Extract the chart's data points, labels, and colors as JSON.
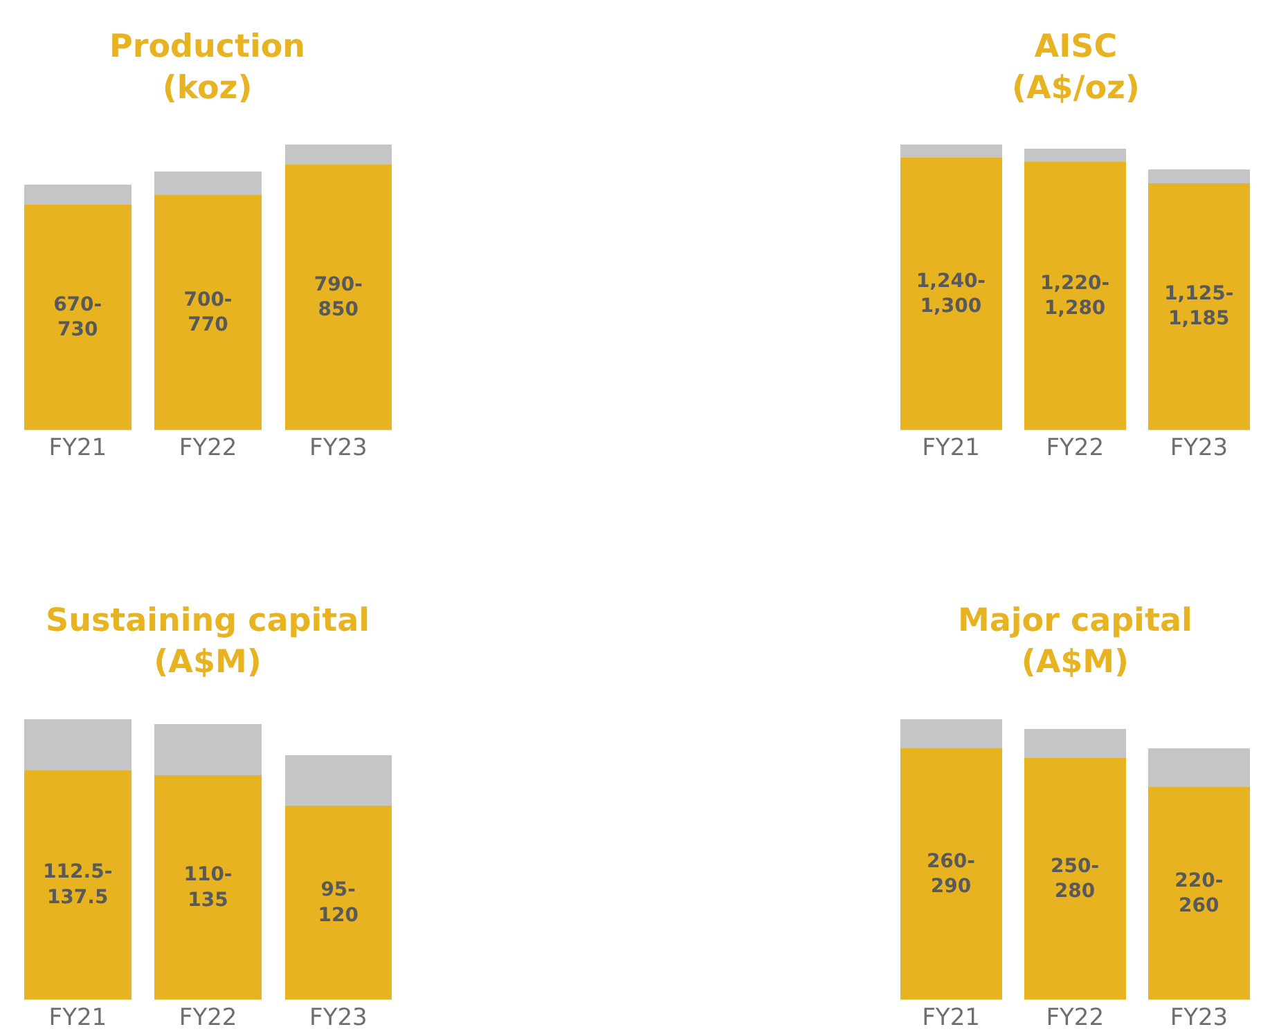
{
  "chart_data": [
    {
      "type": "bar",
      "stacked": true,
      "title": "Production\n(koz)",
      "categories": [
        "FY21",
        "FY22",
        "FY23"
      ],
      "tick_labels": "x",
      "series": [
        {
          "color": "#e8b321",
          "values": [
            670,
            700,
            790
          ],
          "value_labels": [
            "670-\n730",
            "700-\n770",
            "790-\n850"
          ]
        },
        {
          "color": "#c4c5c7",
          "values": [
            60,
            70,
            60
          ]
        }
      ]
    },
    {
      "type": "bar",
      "stacked": true,
      "title": "AISC\n(A$/oz)",
      "categories": [
        "FY21",
        "FY22",
        "FY23"
      ],
      "tick_labels": "x",
      "series": [
        {
          "color": "#e8b321",
          "values": [
            1240,
            1220,
            1125
          ],
          "value_labels": [
            "1,240-\n1,300",
            "1,220-\n1,280",
            "1,125-\n1,185"
          ]
        },
        {
          "color": "#c4c5c7",
          "values": [
            60,
            60,
            60
          ]
        }
      ]
    },
    {
      "type": "bar",
      "stacked": true,
      "title": "Sustaining capital\n(A$M)",
      "categories": [
        "FY21",
        "FY22",
        "FY23"
      ],
      "tick_labels": "x",
      "series": [
        {
          "color": "#e8b321",
          "values": [
            112.5,
            110,
            95
          ],
          "value_labels": [
            "112.5-\n137.5",
            "110-\n135",
            "95-\n120"
          ]
        },
        {
          "color": "#c4c5c7",
          "values": [
            25,
            25,
            25
          ]
        }
      ]
    },
    {
      "type": "bar",
      "stacked": true,
      "title": "Major capital\n(A$M)",
      "categories": [
        "FY21",
        "FY22",
        "FY23"
      ],
      "tick_labels": "x",
      "series": [
        {
          "color": "#e8b321",
          "values": [
            260,
            250,
            220
          ],
          "value_labels": [
            "260-\n290",
            "250-\n280",
            "220-\n260"
          ]
        },
        {
          "color": "#c4c5c7",
          "values": [
            30,
            30,
            40
          ]
        }
      ]
    }
  ]
}
